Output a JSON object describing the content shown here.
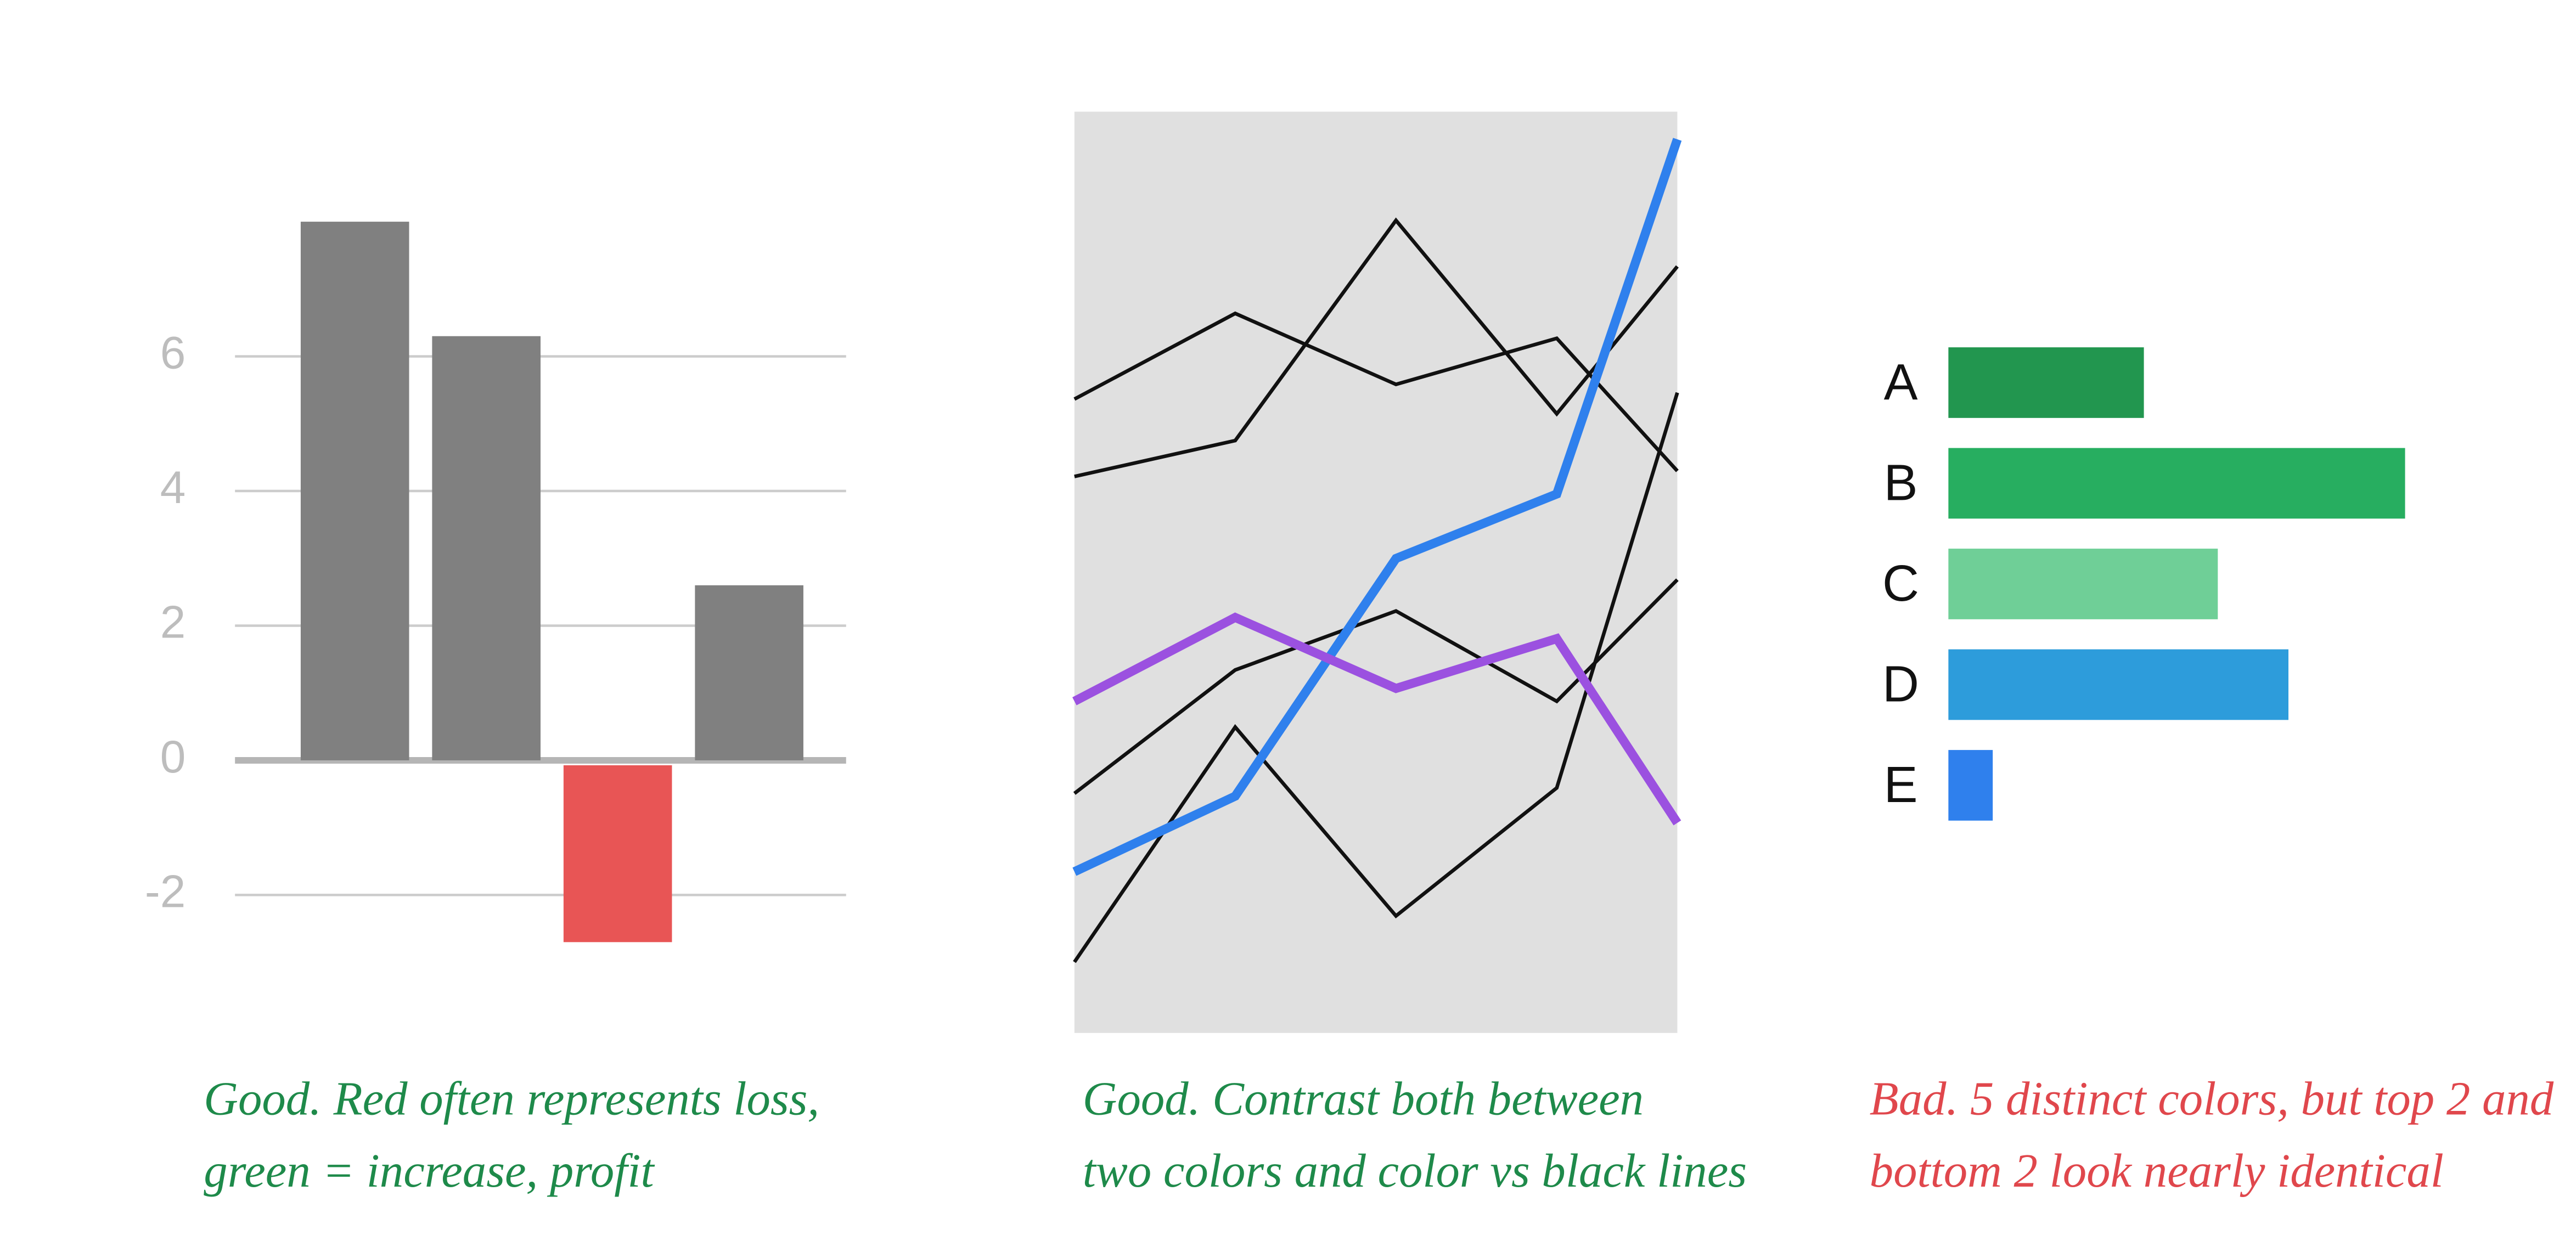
{
  "chart_data": [
    {
      "type": "bar",
      "categories": [
        null,
        null,
        null,
        null
      ],
      "values": [
        8.0,
        6.3,
        -2.7,
        2.6
      ],
      "colors": [
        "#808080",
        "#808080",
        "#e85555",
        "#808080"
      ],
      "ylim": [
        -3,
        8
      ],
      "yticks": [
        -2,
        0,
        2,
        4,
        6
      ],
      "grid": true,
      "caption": [
        "Good. Red often represents loss,",
        "green = increase, profit"
      ],
      "caption_color": "#1e8a4a"
    },
    {
      "type": "line",
      "background": "#e0e0e0",
      "x": [
        0,
        1,
        2,
        3,
        3.75
      ],
      "xlim": [
        0,
        3.75
      ],
      "ylim": [
        0,
        100
      ],
      "series": [
        {
          "color": "#111111",
          "values": [
            68.8,
            78.1,
            70.4,
            75.4,
            61.0
          ]
        },
        {
          "color": "#111111",
          "values": [
            60.4,
            64.3,
            88.2,
            67.2,
            83.2
          ]
        },
        {
          "color": "#111111",
          "values": [
            26.0,
            39.4,
            45.8,
            36.0,
            49.2
          ]
        },
        {
          "color": "#111111",
          "values": [
            7.7,
            33.2,
            12.7,
            26.6,
            69.5
          ]
        },
        {
          "color": "#2f80ed",
          "values": [
            17.5,
            25.7,
            51.5,
            58.5,
            97.0
          ]
        },
        {
          "color": "#9b51e0",
          "values": [
            36.0,
            45.1,
            37.4,
            42.8,
            22.8
          ]
        }
      ],
      "caption": [
        "Good. Contrast both between",
        "two colors and color vs black lines"
      ],
      "caption_color": "#1e8a4a"
    },
    {
      "type": "hbar",
      "categories": [
        "A",
        "B",
        "C",
        "D",
        "E"
      ],
      "values": [
        119,
        278,
        164,
        207,
        27
      ],
      "colors": [
        "#22964f",
        "#27ae60",
        "#6fcf97",
        "#2d9cdb",
        "#2f80ed"
      ],
      "xlim": [
        0,
        300
      ],
      "caption": [
        "Bad. 5 distinct colors, but top 2 and",
        "bottom 2 look nearly identical"
      ],
      "caption_color": "#e0474c"
    }
  ]
}
